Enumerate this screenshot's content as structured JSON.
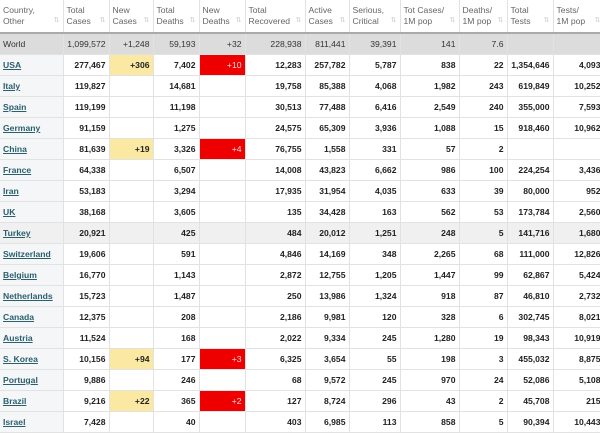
{
  "headers": [
    [
      "Country,",
      "Other"
    ],
    [
      "Total",
      "Cases"
    ],
    [
      "New",
      "Cases"
    ],
    [
      "Total",
      "Deaths"
    ],
    [
      "New",
      "Deaths"
    ],
    [
      "Total",
      "Recovered"
    ],
    [
      "Active",
      "Cases"
    ],
    [
      "Serious,",
      "Critical"
    ],
    [
      "Tot Cases/",
      "1M pop"
    ],
    [
      "Deaths/",
      "1M pop"
    ],
    [
      "Total",
      "Tests"
    ],
    [
      "Tests/",
      "1M pop"
    ]
  ],
  "colors": {
    "new_cases_bg": "#fbe9a3",
    "new_deaths_bg": "#ee0000",
    "world_bg": "#dcdcdc",
    "link": "#2a5f6e"
  },
  "world": [
    "World",
    "1,099,572",
    "+1,248",
    "59,193",
    "+32",
    "228,938",
    "811,441",
    "39,391",
    "141",
    "7.6",
    "",
    ""
  ],
  "rows": [
    [
      "USA",
      "277,467",
      "+306",
      "7,402",
      "+10",
      "12,283",
      "257,782",
      "5,787",
      "838",
      "22",
      "1,354,646",
      "4,093"
    ],
    [
      "Italy",
      "119,827",
      "",
      "14,681",
      "",
      "19,758",
      "85,388",
      "4,068",
      "1,982",
      "243",
      "619,849",
      "10,252"
    ],
    [
      "Spain",
      "119,199",
      "",
      "11,198",
      "",
      "30,513",
      "77,488",
      "6,416",
      "2,549",
      "240",
      "355,000",
      "7,593"
    ],
    [
      "Germany",
      "91,159",
      "",
      "1,275",
      "",
      "24,575",
      "65,309",
      "3,936",
      "1,088",
      "15",
      "918,460",
      "10,962"
    ],
    [
      "China",
      "81,639",
      "+19",
      "3,326",
      "+4",
      "76,755",
      "1,558",
      "331",
      "57",
      "2",
      "",
      ""
    ],
    [
      "France",
      "64,338",
      "",
      "6,507",
      "",
      "14,008",
      "43,823",
      "6,662",
      "986",
      "100",
      "224,254",
      "3,436"
    ],
    [
      "Iran",
      "53,183",
      "",
      "3,294",
      "",
      "17,935",
      "31,954",
      "4,035",
      "633",
      "39",
      "80,000",
      "952"
    ],
    [
      "UK",
      "38,168",
      "",
      "3,605",
      "",
      "135",
      "34,428",
      "163",
      "562",
      "53",
      "173,784",
      "2,560"
    ],
    [
      "Turkey",
      "20,921",
      "",
      "425",
      "",
      "484",
      "20,012",
      "1,251",
      "248",
      "5",
      "141,716",
      "1,680"
    ],
    [
      "Switzerland",
      "19,606",
      "",
      "591",
      "",
      "4,846",
      "14,169",
      "348",
      "2,265",
      "68",
      "111,000",
      "12,826"
    ],
    [
      "Belgium",
      "16,770",
      "",
      "1,143",
      "",
      "2,872",
      "12,755",
      "1,205",
      "1,447",
      "99",
      "62,867",
      "5,424"
    ],
    [
      "Netherlands",
      "15,723",
      "",
      "1,487",
      "",
      "250",
      "13,986",
      "1,324",
      "918",
      "87",
      "46,810",
      "2,732"
    ],
    [
      "Canada",
      "12,375",
      "",
      "208",
      "",
      "2,186",
      "9,981",
      "120",
      "328",
      "6",
      "302,745",
      "8,021"
    ],
    [
      "Austria",
      "11,524",
      "",
      "168",
      "",
      "2,022",
      "9,334",
      "245",
      "1,280",
      "19",
      "98,343",
      "10,919"
    ],
    [
      "S. Korea",
      "10,156",
      "+94",
      "177",
      "+3",
      "6,325",
      "3,654",
      "55",
      "198",
      "3",
      "455,032",
      "8,875"
    ],
    [
      "Portugal",
      "9,886",
      "",
      "246",
      "",
      "68",
      "9,572",
      "245",
      "970",
      "24",
      "52,086",
      "5,108"
    ],
    [
      "Brazil",
      "9,216",
      "+22",
      "365",
      "+2",
      "127",
      "8,724",
      "296",
      "43",
      "2",
      "45,708",
      "215"
    ],
    [
      "Israel",
      "7,428",
      "",
      "40",
      "",
      "403",
      "6,985",
      "113",
      "858",
      "5",
      "90,394",
      "10,443"
    ]
  ]
}
